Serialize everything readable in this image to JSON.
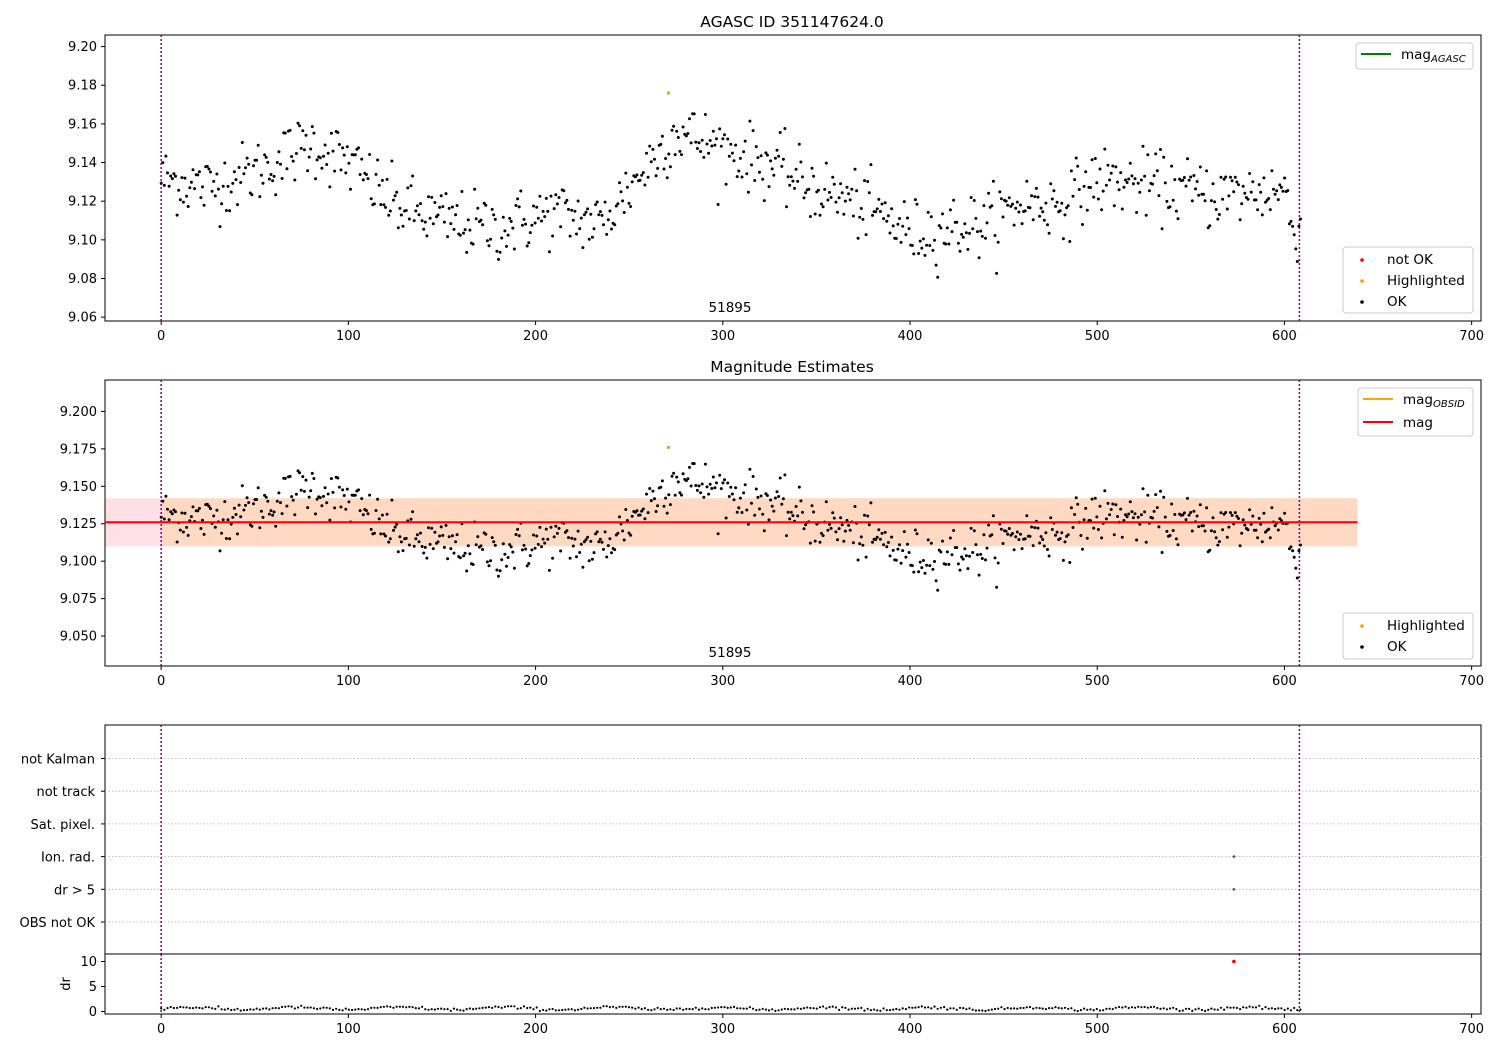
{
  "colors": {
    "ok": "#000000",
    "highlighted": "#ff9900",
    "not_ok": "#ff0000",
    "agasc_line": "#008000",
    "obsid_line": "#ffa500",
    "mean_line": "#ff0000",
    "vline": "#800080",
    "band_outer": "#ffe0e6",
    "band_inner": "#ffd9c2",
    "grid": "#b0b0b0"
  },
  "chart_data": [
    {
      "type": "scatter",
      "title": "AGASC ID 351147624.0",
      "xlim": [
        -30,
        705
      ],
      "ylim": [
        9.058,
        9.206
      ],
      "xticks": [
        0,
        100,
        200,
        300,
        400,
        500,
        600,
        700
      ],
      "yticks": [
        9.06,
        9.08,
        9.1,
        9.12,
        9.14,
        9.16,
        9.18,
        9.2
      ],
      "ytick_labels": [
        "9.06",
        "9.08",
        "9.10",
        "9.12",
        "9.14",
        "9.16",
        "9.18",
        "9.20"
      ],
      "obsid_annotation": "51895",
      "obsid_annotation_x": 303,
      "vlines": [
        0,
        608
      ],
      "legend_lines": [
        {
          "name": "mag",
          "sub": "AGASC",
          "color": "#008000"
        }
      ],
      "legend_points": [
        {
          "name": "not OK",
          "color": "#ff0000"
        },
        {
          "name": "Highlighted",
          "color": "#ff9900"
        },
        {
          "name": "OK",
          "color": "#000000"
        }
      ],
      "highlighted_points": [
        [
          271,
          9.176
        ]
      ],
      "trend_x": [
        0,
        25,
        55,
        80,
        100,
        125,
        150,
        180,
        210,
        235,
        255,
        275,
        300,
        325,
        345,
        365,
        385,
        400,
        420,
        440,
        460,
        480,
        500,
        520,
        540,
        560,
        580,
        600,
        605,
        608
      ],
      "trend_y": [
        9.132,
        9.127,
        9.137,
        9.15,
        9.14,
        9.118,
        9.11,
        9.106,
        9.114,
        9.108,
        9.133,
        9.156,
        9.147,
        9.139,
        9.128,
        9.121,
        9.113,
        9.103,
        9.106,
        9.108,
        9.119,
        9.118,
        9.131,
        9.129,
        9.127,
        9.123,
        9.124,
        9.126,
        9.103,
        9.108
      ],
      "noise_sd": 0.0085
    },
    {
      "type": "scatter",
      "title": "Magnitude Estimates",
      "xlim": [
        -30,
        705
      ],
      "ylim": [
        9.03,
        9.221
      ],
      "xticks": [
        0,
        100,
        200,
        300,
        400,
        500,
        600,
        700
      ],
      "yticks": [
        9.05,
        9.075,
        9.1,
        9.125,
        9.15,
        9.175,
        9.2
      ],
      "ytick_labels": [
        "9.050",
        "9.075",
        "9.100",
        "9.125",
        "9.150",
        "9.175",
        "9.200"
      ],
      "obsid_annotation": "51895",
      "obsid_annotation_x": 303,
      "vlines": [
        0,
        608
      ],
      "mean_mag": 9.126,
      "band_outer": [
        9.11,
        9.142
      ],
      "band_inner": [
        9.11,
        9.142
      ],
      "band_outer_x": [
        -30,
        639
      ],
      "band_inner_x": [
        0,
        639
      ],
      "legend_lines": [
        {
          "name": "mag",
          "sub": "OBSID",
          "color": "#ffa500"
        },
        {
          "name": "mag",
          "sub": "",
          "color": "#ff0000"
        }
      ],
      "legend_points": [
        {
          "name": "Highlighted",
          "color": "#ff9900"
        },
        {
          "name": "OK",
          "color": "#000000"
        }
      ],
      "highlighted_points": [
        [
          271,
          9.176
        ]
      ]
    },
    {
      "type": "scatter",
      "title": "",
      "xlim": [
        -30,
        705
      ],
      "flag_labels": [
        "not Kalman",
        "not track",
        "Sat. pixel.",
        "Ion. rad.",
        "dr > 5",
        "OBS not OK"
      ],
      "flag_points": [
        [
          573,
          "Ion. rad."
        ],
        [
          573,
          "dr > 5"
        ]
      ],
      "vlines": [
        0,
        608
      ]
    },
    {
      "type": "scatter",
      "title": "",
      "xlim": [
        -30,
        705
      ],
      "ylim": [
        -0.5,
        11.5
      ],
      "ylabel": "dr",
      "xticks": [
        0,
        100,
        200,
        300,
        400,
        500,
        600,
        700
      ],
      "yticks": [
        0,
        5,
        10
      ],
      "ytick_labels": [
        "0",
        "5",
        "10"
      ],
      "vlines": [
        0,
        608
      ],
      "not_ok_points": [
        [
          573,
          10
        ]
      ],
      "dr_level": 0.6
    }
  ]
}
